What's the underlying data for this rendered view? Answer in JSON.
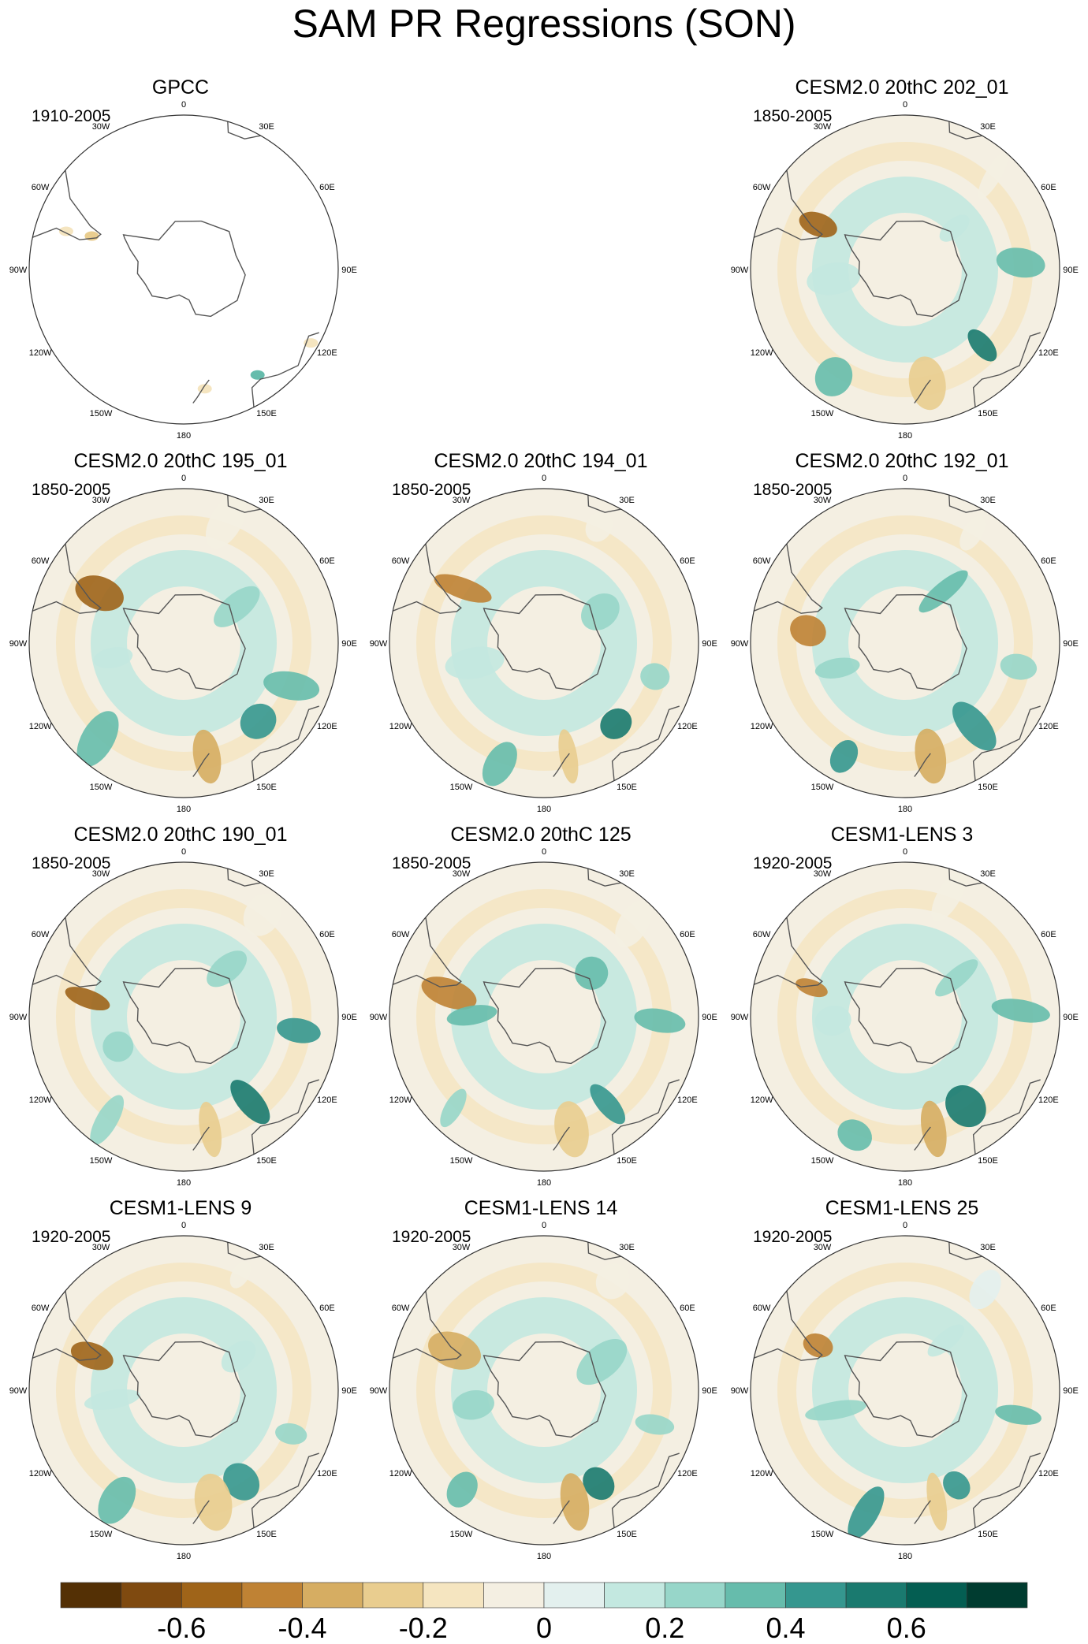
{
  "figure": {
    "title": "SAM PR Regressions (SON)"
  },
  "meridian_labels": [
    "0",
    "30E",
    "60E",
    "90E",
    "120E",
    "150E",
    "180",
    "150W",
    "120W",
    "90W",
    "60W",
    "30W"
  ],
  "panels": [
    {
      "title": "GPCC",
      "period": "1910-2005",
      "observed": true
    },
    {
      "title": "CESM2.0 20thC 202_01",
      "period": "1850-2005",
      "observed": false
    },
    {
      "title": "CESM2.0 20thC 195_01",
      "period": "1850-2005",
      "observed": false
    },
    {
      "title": "CESM2.0 20thC 194_01",
      "period": "1850-2005",
      "observed": false
    },
    {
      "title": "CESM2.0 20thC 192_01",
      "period": "1850-2005",
      "observed": false
    },
    {
      "title": "CESM2.0 20thC 190_01",
      "period": "1850-2005",
      "observed": false
    },
    {
      "title": "CESM2.0 20thC 125",
      "period": "1850-2005",
      "observed": false
    },
    {
      "title": "CESM1-LENS 3",
      "period": "1920-2005",
      "observed": false
    },
    {
      "title": "CESM1-LENS 9",
      "period": "1920-2005",
      "observed": false
    },
    {
      "title": "CESM1-LENS 14",
      "period": "1920-2005",
      "observed": false
    },
    {
      "title": "CESM1-LENS 25",
      "period": "1920-2005",
      "observed": false
    }
  ],
  "colorbar": {
    "colors": [
      "#543005",
      "#7f4a10",
      "#9f6419",
      "#bf8234",
      "#d6ad62",
      "#e9cd8f",
      "#f5e5c0",
      "#f4efe2",
      "#e3f0ee",
      "#c3e8e0",
      "#97d6c9",
      "#66bcac",
      "#35978f",
      "#1a7a6f",
      "#045e52",
      "#003c30"
    ],
    "tick_labels": [
      "-0.6",
      "-0.4",
      "-0.2",
      "0",
      "0.2",
      "0.4",
      "0.6"
    ],
    "ticks": [
      -0.6,
      -0.4,
      -0.2,
      0,
      0.2,
      0.4,
      0.6
    ],
    "min": -0.8,
    "max": 0.8
  },
  "chart_data": {
    "type": "heatmap",
    "projection": "south-polar-stereographic",
    "colorbar_levels": [
      -0.7,
      -0.6,
      -0.5,
      -0.4,
      -0.3,
      -0.2,
      -0.1,
      0,
      0.1,
      0.2,
      0.3,
      0.4,
      0.5,
      0.6,
      0.7
    ],
    "features": [
      {
        "lon": 100,
        "lat": -45,
        "value": 0.3
      },
      {
        "lon": 140,
        "lat": -48,
        "value": 0.5
      },
      {
        "lon": 170,
        "lat": -45,
        "value": -0.3
      },
      {
        "lon": -70,
        "lat": -52,
        "value": -0.5
      },
      {
        "lon": -100,
        "lat": -62,
        "value": 0.2
      },
      {
        "lon": 50,
        "lat": -65,
        "value": 0.2
      },
      {
        "lon": -150,
        "lat": -40,
        "value": 0.3
      },
      {
        "lon": 30,
        "lat": -40,
        "value": -0.1
      }
    ]
  }
}
